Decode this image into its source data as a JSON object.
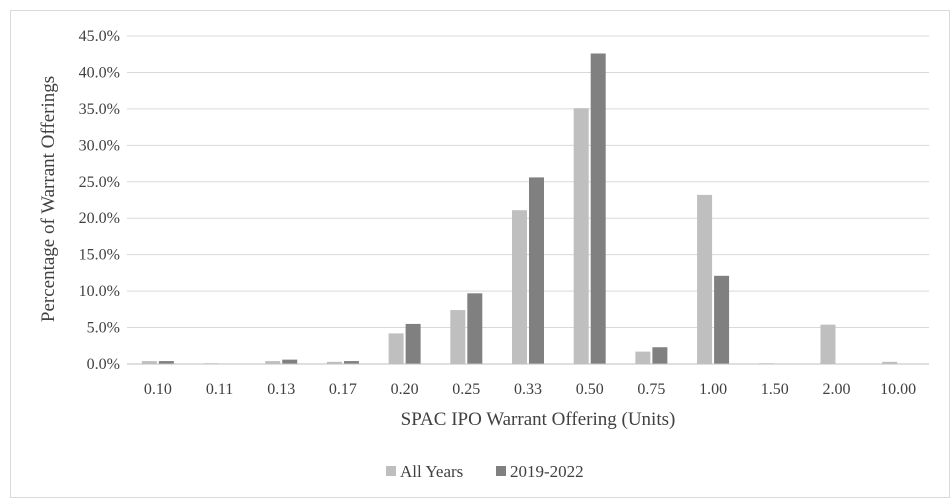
{
  "chart_data": {
    "type": "bar",
    "title": "",
    "xlabel": "SPAC IPO Warrant Offering (Units)",
    "ylabel": "Percentage of Warrant Offerings",
    "categories": [
      "0.10",
      "0.11",
      "0.13",
      "0.17",
      "0.20",
      "0.25",
      "0.33",
      "0.50",
      "0.75",
      "1.00",
      "1.50",
      "2.00",
      "10.00"
    ],
    "y_ticks": [
      "0.0%",
      "5.0%",
      "10.0%",
      "15.0%",
      "20.0%",
      "25.0%",
      "30.0%",
      "35.0%",
      "40.0%",
      "45.0%"
    ],
    "ylim": [
      0,
      45
    ],
    "grid": true,
    "legend_position": "bottom",
    "series": [
      {
        "name": "All Years",
        "color": "#bfbfbf",
        "values": [
          0.4,
          0.1,
          0.4,
          0.3,
          4.2,
          7.4,
          21.1,
          35.1,
          1.7,
          23.2,
          0.1,
          5.4,
          0.3
        ]
      },
      {
        "name": "2019-2022",
        "color": "#808080",
        "values": [
          0.4,
          0.0,
          0.6,
          0.4,
          5.5,
          9.7,
          25.6,
          42.6,
          2.3,
          12.1,
          0.0,
          0.0,
          0.0
        ]
      }
    ]
  }
}
